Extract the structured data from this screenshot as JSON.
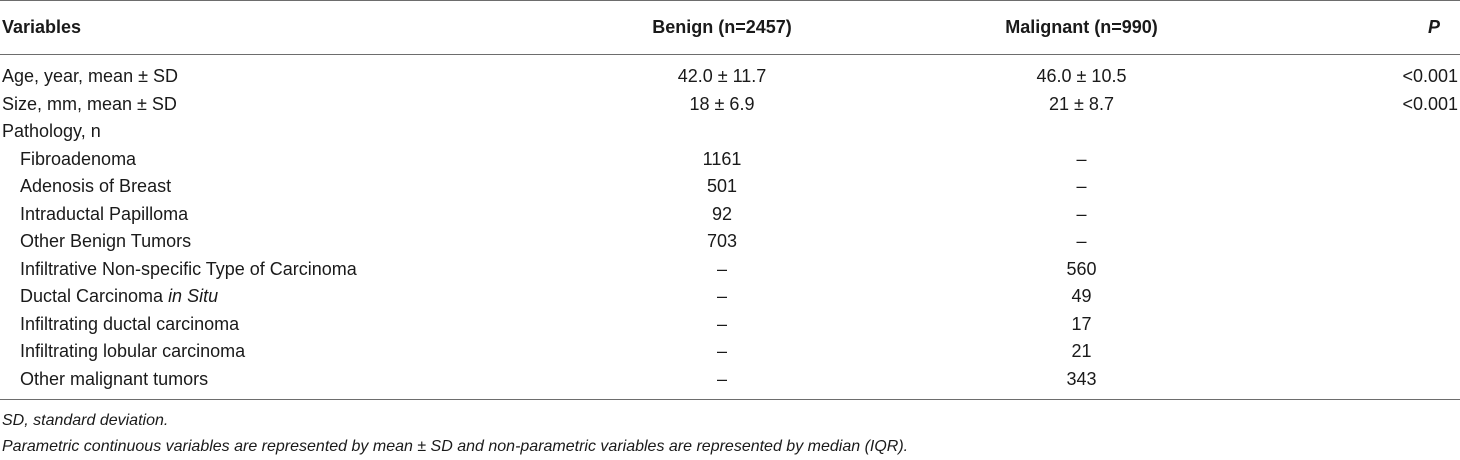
{
  "table": {
    "headers": {
      "variables": "Variables",
      "benign": "Benign (n=2457)",
      "malignant": "Malignant (n=990)",
      "p": "P"
    },
    "rows": [
      {
        "label": "Age, year, mean ± SD",
        "benign": "42.0 ± 11.7",
        "malignant": "46.0 ± 10.5",
        "p": "<0.001"
      },
      {
        "label": "Size, mm, mean ± SD",
        "benign": "18 ± 6.9",
        "malignant": "21 ± 8.7",
        "p": "<0.001"
      },
      {
        "label": "Pathology, n",
        "benign": "",
        "malignant": "",
        "p": ""
      },
      {
        "label": "Fibroadenoma",
        "benign": "1161",
        "malignant": "–",
        "p": ""
      },
      {
        "label": "Adenosis of Breast",
        "benign": "501",
        "malignant": "–",
        "p": ""
      },
      {
        "label": "Intraductal Papilloma",
        "benign": "92",
        "malignant": "–",
        "p": ""
      },
      {
        "label": "Other Benign Tumors",
        "benign": "703",
        "malignant": "–",
        "p": ""
      },
      {
        "label": "Infiltrative Non-specific Type of Carcinoma",
        "benign": "–",
        "malignant": "560",
        "p": ""
      },
      {
        "label_main": "Ductal Carcinoma ",
        "label_italic": "in Situ",
        "benign": "–",
        "malignant": "49",
        "p": ""
      },
      {
        "label": "Infiltrating ductal carcinoma",
        "benign": "–",
        "malignant": "17",
        "p": ""
      },
      {
        "label": "Infiltrating lobular carcinoma",
        "benign": "–",
        "malignant": "21",
        "p": ""
      },
      {
        "label": "Other malignant tumors",
        "benign": "–",
        "malignant": "343",
        "p": ""
      }
    ]
  },
  "footnotes": {
    "line1": "SD, standard deviation.",
    "line2": "Parametric continuous variables are represented by mean ± SD and non-parametric variables are represented by median (IQR)."
  }
}
